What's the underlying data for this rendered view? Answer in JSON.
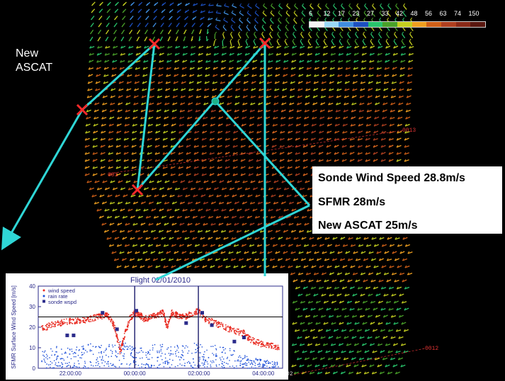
{
  "colors": {
    "track": "#2fd6d6",
    "cross": "#ff2a2a",
    "wind": "#e82a20",
    "rain": "#1a4dd8",
    "sonde": "#2a2a8a"
  },
  "legend": {
    "ticks": [
      "6",
      "12",
      "17",
      "23",
      "27",
      "33",
      "42",
      "48",
      "56",
      "63",
      "74",
      "150"
    ],
    "colors": [
      "#f4f4f4",
      "#9ad8f5",
      "#3f8fe0",
      "#1c50c0",
      "#28c46c",
      "#4aa22a",
      "#c6d020",
      "#f0a020",
      "#d06018",
      "#b04020",
      "#8a2a18",
      "#5a1810"
    ]
  },
  "annotation": {
    "label": "New ASCAT"
  },
  "info": {
    "line1": "Sonde Wind Speed 28.8m/s",
    "line2": "SFMR 28m/s",
    "line3": "New ASCAT 25m/s"
  },
  "rev_labels": {
    "r1": "0013",
    "r2": "001",
    "r3": "0012",
    "r4": "02"
  },
  "chart_data": {
    "type": "scatter",
    "title": "Flight 02/01/2010",
    "ylabel": "SFMR Surface Wind Speed [m/s]",
    "xlabel": "",
    "x_ticks": [
      "22:00:00",
      "00:00:00",
      "02:00:00",
      "04:00:00"
    ],
    "x_tick_hours": [
      -2,
      0,
      2,
      4
    ],
    "xlim": [
      -3.0,
      4.6
    ],
    "ylim": [
      0,
      40
    ],
    "y_ticks": [
      0,
      10,
      20,
      30,
      40
    ],
    "reference_line": 25,
    "vertical_lines": [
      0.0,
      1.98
    ],
    "legend": [
      "wind speed",
      "rain rate",
      "sonde wspd"
    ],
    "legend_position": "top-left",
    "series": [
      {
        "name": "wind speed",
        "style": "red dots",
        "x": [
          -2.9,
          -2.6,
          -2.3,
          -2.0,
          -1.7,
          -1.4,
          -1.1,
          -0.9,
          -0.75,
          -0.6,
          -0.45,
          -0.3,
          -0.15,
          0.0,
          0.15,
          0.3,
          0.5,
          0.7,
          0.9,
          1.0,
          1.15,
          1.3,
          1.5,
          1.7,
          1.98,
          2.2,
          2.5,
          2.8,
          3.1,
          3.4,
          3.6,
          3.9,
          4.2,
          4.5
        ],
        "y": [
          19,
          21,
          22,
          23,
          23,
          24,
          25,
          26,
          24,
          19,
          8,
          17,
          24,
          27,
          26,
          24,
          25,
          26,
          27,
          20,
          27,
          26,
          25,
          26,
          28,
          24,
          22,
          20,
          18,
          17,
          14,
          12,
          11,
          10
        ]
      },
      {
        "name": "rain rate",
        "style": "blue dots",
        "x": [
          -2.9,
          -2.4,
          -1.9,
          -1.4,
          -0.9,
          -0.4,
          0.0,
          0.5,
          1.0,
          1.5,
          2.0,
          2.5,
          3.0,
          3.5,
          4.0,
          4.5
        ],
        "y": [
          6,
          8,
          7,
          9,
          8,
          10,
          7,
          8,
          9,
          8,
          9,
          8,
          7,
          4,
          3,
          2
        ]
      },
      {
        "name": "sonde wspd",
        "style": "navy squares",
        "x": [
          -2.1,
          -1.9,
          -1.0,
          -0.55,
          0.05,
          1.6,
          2.1,
          2.4,
          3.1,
          3.4
        ],
        "y": [
          16,
          16,
          27,
          19,
          28,
          22,
          27,
          21,
          13,
          15
        ]
      }
    ]
  }
}
